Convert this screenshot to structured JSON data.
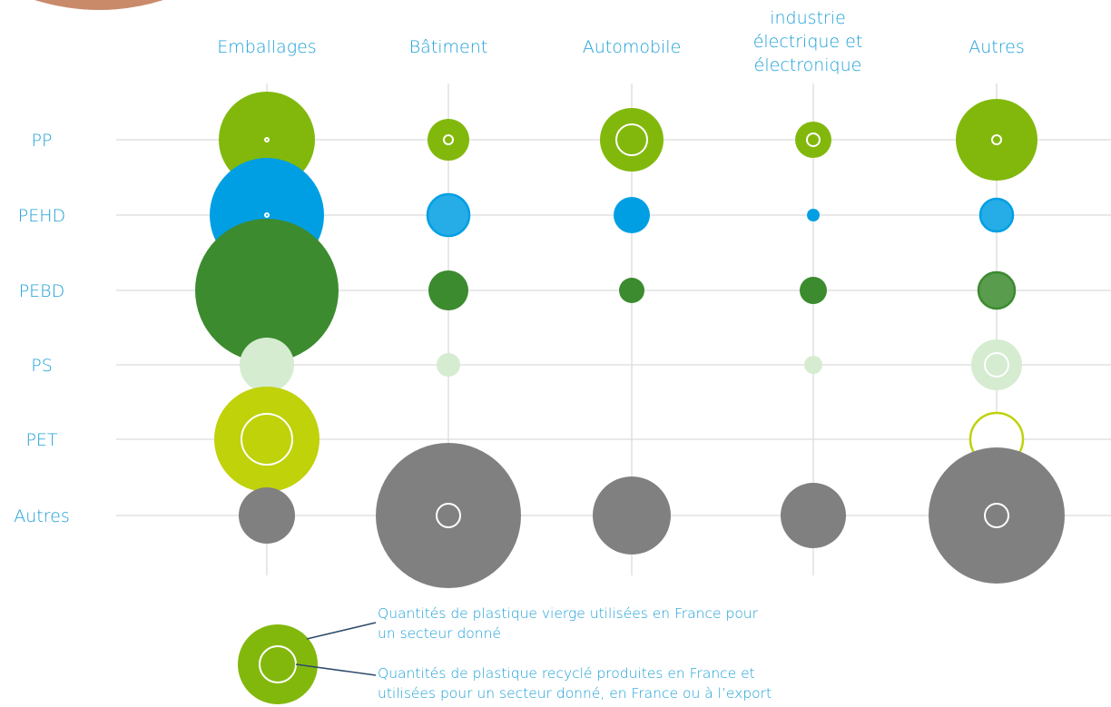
{
  "chart_data": {
    "type": "bubble-matrix",
    "columns": [
      "Emballages",
      "Bâtiment",
      "Automobile",
      [
        "industrie",
        "électrique et",
        "électronique"
      ],
      "Autres"
    ],
    "rows": [
      "PP",
      "PEHD",
      "PEBD",
      "PS",
      "PET",
      "Autres"
    ],
    "colors": {
      "PP": "#82b80c",
      "PEHD": "#009fe3",
      "PEBD": "#3c8b2f",
      "PS": "#d5ecd1",
      "PET": "#bfd20a",
      "Autres": "#808080"
    },
    "virgin_radius": [
      [
        53,
        23,
        35,
        20,
        45
      ],
      [
        63,
        22,
        20,
        7,
        18
      ],
      [
        79,
        22,
        14,
        15,
        20
      ],
      [
        30,
        13,
        0,
        10,
        28
      ],
      [
        58,
        0,
        0,
        0,
        0
      ],
      [
        31,
        80,
        43,
        36,
        75
      ]
    ],
    "recycled_radius": [
      [
        2,
        5,
        17,
        7,
        5
      ],
      [
        2,
        23,
        0,
        0,
        18
      ],
      [
        0,
        0,
        0,
        0,
        20
      ],
      [
        0,
        0,
        0,
        0,
        13
      ],
      [
        28,
        0,
        0,
        0,
        29
      ],
      [
        0,
        13,
        0,
        0,
        13
      ]
    ],
    "radius_note": "relative bubble sizes (radius) read from the figure; the chart prints no numeric values",
    "legend": {
      "virgin": "Quantités de plastique vierge utilisées en France pour un secteur donné",
      "virgin_lines": [
        "Quantités de plastique vierge utilisées en France pour",
        "un secteur donné"
      ],
      "recycled": "Quantités de plastique recyclé produites en France et utilisées pour un secteur donné, en France ou à l’export",
      "recycled_lines": [
        "Quantités de plastique recyclé produites en France et",
        "utilisées pour un secteur donné, en France ou à l’export"
      ]
    }
  }
}
